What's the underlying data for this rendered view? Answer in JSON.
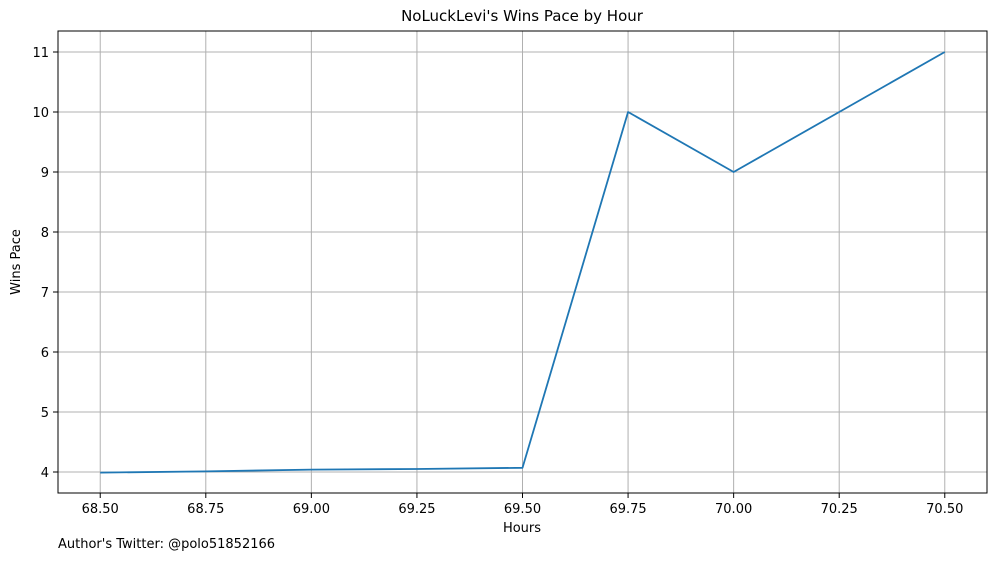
{
  "chart_data": {
    "type": "line",
    "title": "NoLuckLevi's Wins Pace by Hour",
    "xlabel": "Hours",
    "ylabel": "Wins Pace",
    "x": [
      68.5,
      68.75,
      69.0,
      69.25,
      69.5,
      69.75,
      70.0,
      70.25,
      70.5
    ],
    "series": [
      {
        "values": [
          3.99,
          4.01,
          4.04,
          4.05,
          4.07,
          10.0,
          9.0,
          10.0,
          11.0
        ]
      }
    ],
    "xticks": [
      "68.50",
      "68.75",
      "69.00",
      "69.25",
      "69.50",
      "69.75",
      "70.00",
      "70.25",
      "70.50"
    ],
    "yticks": [
      "4",
      "5",
      "6",
      "7",
      "8",
      "9",
      "10",
      "11"
    ],
    "xlim": [
      68.4,
      70.6
    ],
    "ylim": [
      3.65,
      11.35
    ],
    "grid": true,
    "line_color": "#1f77b4",
    "grid_color": "#b0b0b0"
  },
  "footnote": "Author's Twitter: @polo51852166"
}
